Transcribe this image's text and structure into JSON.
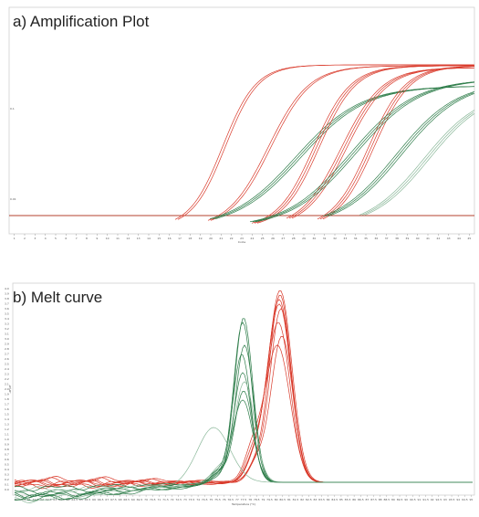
{
  "charts": [
    {
      "id": "amplification",
      "title": "a) Amplification Plot",
      "type": "line",
      "xlabel": "Cycle",
      "xticks": [
        "1",
        "2",
        "3",
        "4",
        "5",
        "6",
        "7",
        "8",
        "9",
        "10",
        "11",
        "12",
        "13",
        "14",
        "15",
        "16",
        "17",
        "18",
        "19",
        "20",
        "21",
        "22",
        "23",
        "24",
        "25",
        "26",
        "27",
        "28",
        "29",
        "30",
        "31",
        "32",
        "33",
        "34",
        "35",
        "36",
        "37",
        "38",
        "39",
        "40",
        "41",
        "42",
        "43",
        "44",
        "45"
      ],
      "yticks": [
        "0.1",
        "0.01"
      ],
      "threshold": 0.004,
      "colors": {
        "red": "#d93a2b",
        "green": "#2e7d4a",
        "lightgreen": "#8bb89a",
        "threshold": "#b5402f"
      }
    },
    {
      "id": "melt",
      "title": "b) Melt curve",
      "type": "line",
      "xlabel": "Temperature (°C)",
      "ylabel": "-dF/dT",
      "xticks": [
        "60",
        "60.5",
        "61",
        "61.5",
        "62",
        "62.5",
        "63",
        "63.5",
        "64",
        "64.5",
        "65",
        "65.5",
        "66",
        "66.5",
        "67",
        "67.5",
        "68",
        "68.5",
        "69",
        "69.5",
        "70",
        "70.5",
        "71",
        "71.5",
        "72",
        "72.5",
        "73",
        "73.5",
        "74",
        "74.5",
        "75",
        "75.5",
        "76",
        "76.5",
        "77",
        "77.5",
        "78",
        "78.5",
        "79",
        "79.5",
        "80",
        "80.5",
        "81",
        "81.5",
        "82",
        "82.5",
        "83",
        "83.5",
        "84",
        "84.5",
        "85",
        "85.5",
        "86",
        "86.5",
        "87",
        "87.5",
        "88",
        "88.5",
        "89",
        "89.5",
        "90",
        "90.5",
        "91",
        "91.5",
        "92",
        "92.5",
        "93",
        "93.5",
        "94",
        "94.5",
        "95"
      ],
      "yticks": [
        "0.0",
        "0.1",
        "0.2",
        "0.3",
        "0.4",
        "0.5",
        "0.6",
        "0.7",
        "0.8",
        "0.9",
        "1.0",
        "1.1",
        "1.2",
        "1.3",
        "1.4",
        "1.5",
        "1.6",
        "1.7",
        "1.8",
        "1.9",
        "2.0",
        "2.1",
        "2.2",
        "2.3",
        "2.4",
        "2.5",
        "2.6",
        "2.7",
        "2.8",
        "2.9",
        "3.0",
        "3.1",
        "3.2",
        "3.3",
        "3.4",
        "3.5",
        "3.6",
        "3.7",
        "3.8",
        "3.9",
        "4.0"
      ],
      "colors": {
        "red": "#d93a2b",
        "green": "#2e7d4a",
        "lightgreen": "#8bb89a"
      }
    }
  ]
}
